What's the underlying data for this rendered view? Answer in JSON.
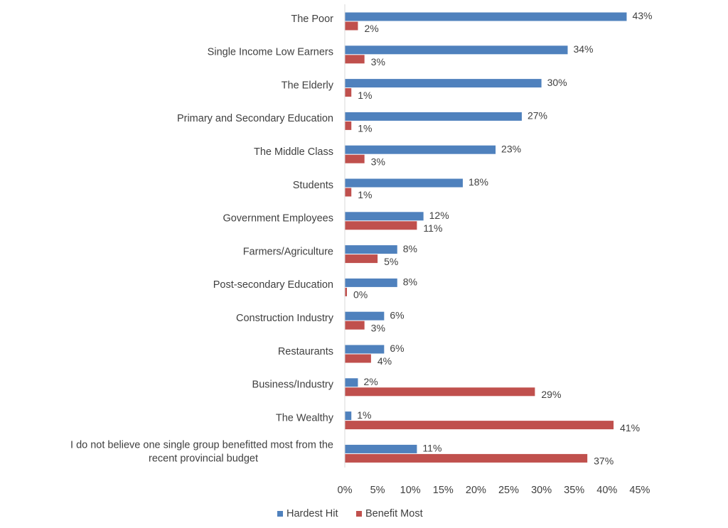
{
  "chart_data": {
    "type": "bar",
    "orientation": "horizontal",
    "categories": [
      "The Poor",
      "Single Income Low Earners",
      "The Elderly",
      "Primary and Secondary Education",
      "The Middle Class",
      "Students",
      "Government Employees",
      "Farmers/Agriculture",
      "Post-secondary Education",
      "Construction Industry",
      "Restaurants",
      "Business/Industry",
      "The Wealthy",
      "I do not believe one single group benefitted most from the recent provincial budget"
    ],
    "series": [
      {
        "name": "Hardest Hit",
        "color": "#4F81BD",
        "values": [
          43,
          34,
          30,
          27,
          23,
          18,
          12,
          8,
          8,
          6,
          6,
          2,
          1,
          11
        ]
      },
      {
        "name": "Benefit Most",
        "color": "#C0504D",
        "values": [
          2,
          3,
          1,
          1,
          3,
          1,
          11,
          5,
          0,
          3,
          4,
          29,
          41,
          37
        ]
      }
    ],
    "value_suffix": "%",
    "xlim": [
      0,
      45
    ],
    "xticks": [
      "0%",
      "5%",
      "10%",
      "15%",
      "20%",
      "25%",
      "30%",
      "35%",
      "40%",
      "45%"
    ],
    "title": "",
    "xlabel": "",
    "ylabel": "",
    "grid": false,
    "legend_position": "bottom"
  }
}
